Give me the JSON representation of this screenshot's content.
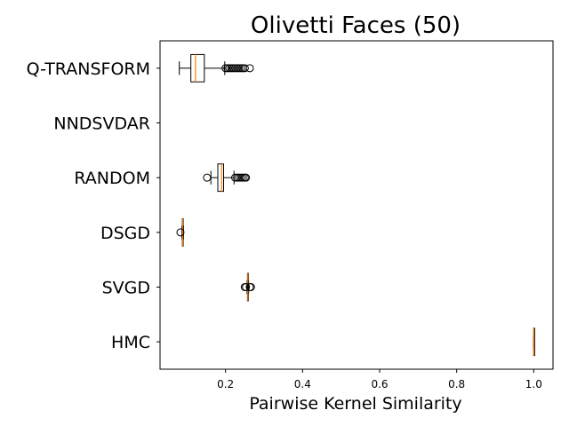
{
  "chart_data": {
    "type": "boxplot",
    "title": "Olivetti Faces (50)",
    "xlabel": "Pairwise Kernel Similarity",
    "ylabel": "",
    "xlim": [
      0.03,
      1.05
    ],
    "xticks": [
      0.2,
      0.4,
      0.6,
      0.8,
      1.0
    ],
    "xtick_labels": [
      "0.2",
      "0.4",
      "0.6",
      "0.8",
      "1.0"
    ],
    "categories": [
      "Q-TRANSFORM",
      "NNDSVDAR",
      "RANDOM",
      "DSGD",
      "SVGD",
      "HMC"
    ],
    "box_color": "#000000",
    "median_color": "#ff7f0e",
    "boxes": [
      {
        "label": "Q-TRANSFORM",
        "whislo": 0.08,
        "q1": 0.11,
        "median": 0.122,
        "q3": 0.145,
        "whishi": 0.198,
        "fliers": [
          0.2,
          0.205,
          0.21,
          0.215,
          0.22,
          0.225,
          0.23,
          0.235,
          0.24,
          0.245,
          0.25,
          0.263
        ]
      },
      {
        "label": "NNDSVDAR",
        "empty": true
      },
      {
        "label": "RANDOM",
        "whislo": 0.162,
        "q1": 0.18,
        "median": 0.19,
        "q3": 0.195,
        "whishi": 0.222,
        "fliers": [
          0.152,
          0.225,
          0.23,
          0.235,
          0.24,
          0.245,
          0.25,
          0.253
        ]
      },
      {
        "label": "DSGD",
        "whislo": 0.087,
        "q1": 0.088,
        "median": 0.089,
        "q3": 0.09,
        "whishi": 0.091,
        "fliers": [
          0.083
        ]
      },
      {
        "label": "SVGD",
        "whislo": 0.256,
        "q1": 0.257,
        "median": 0.258,
        "q3": 0.259,
        "whishi": 0.26,
        "fliers": [
          0.25,
          0.253,
          0.263,
          0.266
        ]
      },
      {
        "label": "HMC",
        "whislo": 1.0,
        "q1": 1.0,
        "median": 1.0,
        "q3": 1.0,
        "whishi": 1.0,
        "fliers": []
      }
    ]
  }
}
